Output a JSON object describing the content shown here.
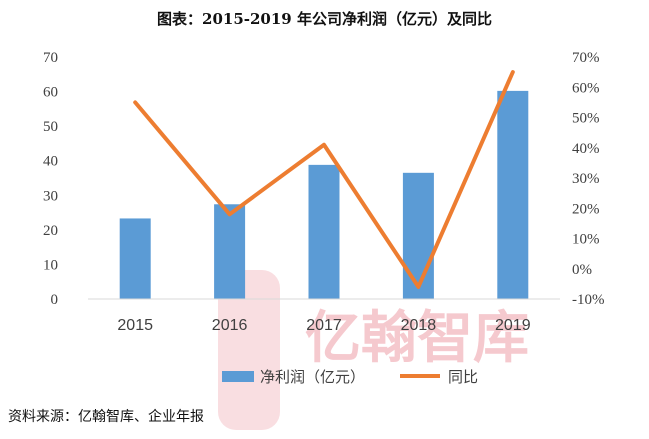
{
  "title": "图表：2015-2019 年公司净利润（亿元）及同比",
  "source": "资料来源：亿翰智库、企业年报",
  "watermark": "亿翰智库",
  "colors": {
    "bar": "#5b9bd5",
    "line": "#ed7d31",
    "watermark": "#f4c0c6"
  },
  "chart_data": {
    "type": "bar+line",
    "categories": [
      "2015",
      "2016",
      "2017",
      "2018",
      "2019"
    ],
    "series": [
      {
        "name": "净利润（亿元）",
        "type": "bar",
        "axis": "left",
        "values": [
          23.3,
          27.4,
          38.8,
          36.5,
          60.2
        ]
      },
      {
        "name": "同比",
        "type": "line",
        "axis": "right",
        "values": [
          0.55,
          0.18,
          0.41,
          -0.06,
          0.65
        ]
      }
    ],
    "left_axis": {
      "ylim": [
        0,
        70
      ],
      "ticks": [
        "0",
        "10",
        "20",
        "30",
        "40",
        "50",
        "60",
        "70"
      ]
    },
    "right_axis": {
      "ylim": [
        -0.1,
        0.7
      ],
      "ticks": [
        "-10%",
        "0%",
        "10%",
        "20%",
        "30%",
        "40%",
        "50%",
        "60%",
        "70%"
      ]
    },
    "legend": {
      "position": "bottom",
      "items": [
        "净利润（亿元）",
        "同比"
      ]
    },
    "grid": false
  }
}
